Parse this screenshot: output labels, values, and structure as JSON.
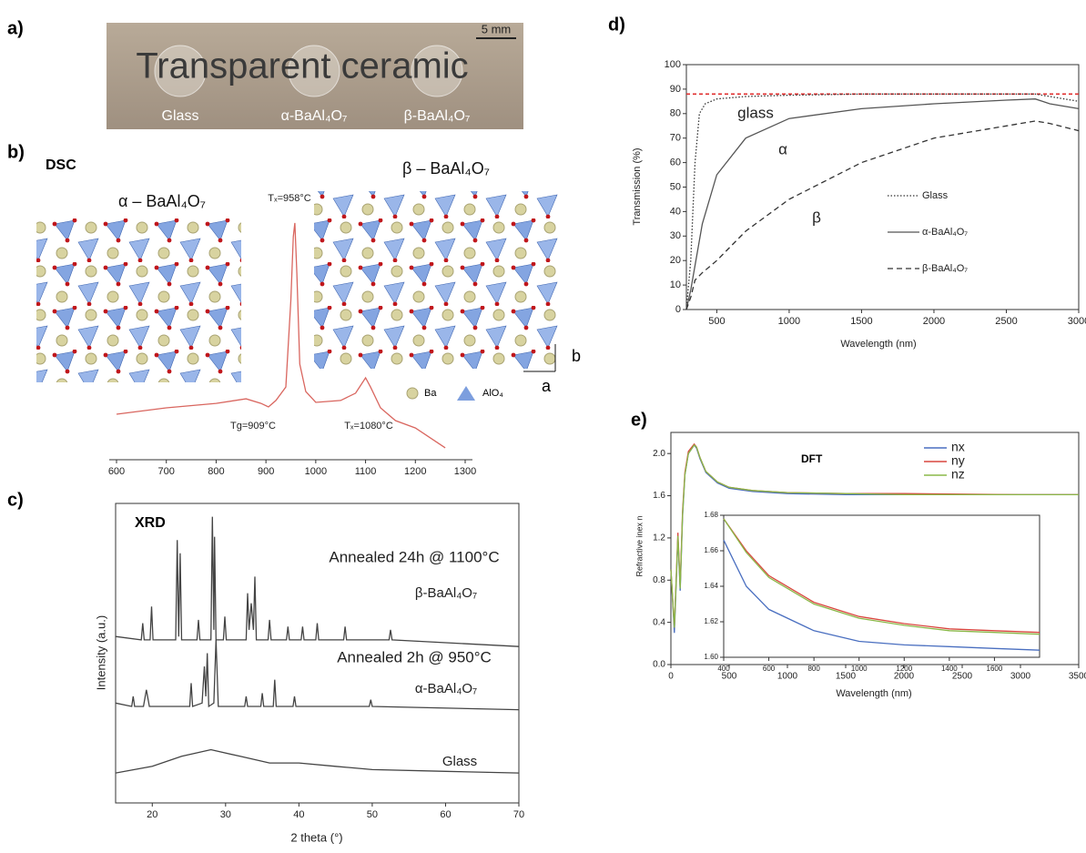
{
  "panel_labels": [
    "a)",
    "b)",
    "c)",
    "d)",
    "e)"
  ],
  "photo": {
    "text": "Transparent ceramic",
    "scale_bar": "5 mm",
    "samples": [
      "Glass",
      "α-BaAl₄O₇",
      "β-BaAl₄O₇"
    ]
  },
  "structures": {
    "alpha_label": "α – BaAl₄O₇",
    "beta_label": "β – BaAl₄O₇",
    "axis_a": "a",
    "axis_b": "b",
    "legend": [
      "Ba",
      "AlO₄"
    ]
  },
  "chart_data": [
    {
      "type": "line",
      "title": "DSC",
      "annotations": [
        "Tₓ=958°C",
        "Tg=909°C",
        "Tₓ=1080°C"
      ],
      "xlim": [
        600,
        1300
      ],
      "xticks": [
        600,
        700,
        800,
        900,
        1000,
        1100,
        1200,
        1300
      ],
      "ylim": [
        0,
        100
      ],
      "series": [
        {
          "color": "#d9665f",
          "style": "solid",
          "x": [
            600,
            700,
            800,
            860,
            890,
            905,
            920,
            940,
            950,
            955,
            958,
            962,
            968,
            980,
            1000,
            1050,
            1080,
            1100,
            1110,
            1130,
            1160,
            1200,
            1260
          ],
          "values": [
            17.3,
            20,
            21.9,
            23.8,
            21.9,
            20.4,
            23.1,
            28.8,
            65.4,
            92.3,
            98.1,
            76.9,
            38.5,
            26.9,
            22.3,
            23.1,
            26.2,
            32.7,
            28.8,
            20,
            14.6,
            11.5,
            3.1
          ]
        }
      ]
    },
    {
      "type": "line",
      "title": "XRD",
      "annotations": [
        "Annealed 24h @ 1100°C",
        "Annealed 2h @ 950°C"
      ],
      "x_label": "2 theta (°)",
      "y_label": "Intensity (a.u.)",
      "xlim": [
        15,
        70
      ],
      "xticks": [
        20,
        30,
        40,
        50,
        60,
        70
      ],
      "ylim": [
        10,
        100
      ],
      "series": [
        {
          "name": "β-BaAl₄O₇",
          "color": "#444",
          "style": "solid",
          "x": [
            15,
            18.5,
            18.7,
            18.9,
            19.7,
            19.9,
            20.1,
            23.2,
            23.4,
            23.6,
            23.8,
            24,
            26.1,
            26.3,
            26.5,
            28,
            28.2,
            28.4,
            28.5,
            28.7,
            29.7,
            29.9,
            30.1,
            32.8,
            33,
            33.2,
            33.5,
            33.8,
            34,
            34.2,
            35.8,
            36,
            36.2,
            38.3,
            38.5,
            38.7,
            40.3,
            40.5,
            40.7,
            42.3,
            42.5,
            42.7,
            46.1,
            46.3,
            46.5,
            52.3,
            52.5,
            52.7,
            70
          ],
          "values": [
            60,
            59,
            64,
            59,
            59,
            69,
            59,
            59,
            89,
            60,
            85,
            59,
            59,
            65,
            59,
            59,
            96,
            62,
            90,
            59,
            59,
            66,
            59,
            59,
            73,
            62,
            70,
            62,
            78,
            59,
            59,
            65,
            59,
            59,
            63,
            59,
            59,
            63,
            59,
            59,
            64,
            59,
            59,
            63,
            59,
            59,
            62,
            59,
            57
          ]
        },
        {
          "name": "α-BaAl₄O₇",
          "color": "#444",
          "style": "solid",
          "x": [
            15,
            17.2,
            17.4,
            17.6,
            18.8,
            19.2,
            19.6,
            25.1,
            25.3,
            25.5,
            26.8,
            27.1,
            27.3,
            27.5,
            27.7,
            28.4,
            28.7,
            29,
            32.6,
            32.8,
            33,
            34.8,
            35,
            35.2,
            36.5,
            36.7,
            36.9,
            39.2,
            39.4,
            39.6,
            49.6,
            49.8,
            50,
            70
          ],
          "values": [
            40,
            39,
            42,
            39,
            39,
            44,
            39,
            39,
            46,
            39,
            40,
            51,
            42,
            55,
            39,
            40,
            59,
            39,
            39,
            42,
            39,
            39,
            43,
            39,
            39,
            47,
            39,
            39,
            42,
            39,
            39,
            41,
            39,
            38
          ]
        },
        {
          "name": "Glass",
          "color": "#444",
          "style": "solid",
          "x": [
            15,
            20,
            24,
            28,
            32,
            36,
            40,
            45,
            50,
            60,
            70
          ],
          "values": [
            19,
            21,
            24,
            26,
            24,
            22,
            22,
            21,
            20,
            19.5,
            19
          ]
        }
      ]
    },
    {
      "type": "line",
      "annotations": [
        "glass",
        "α",
        "β"
      ],
      "x_label": "Wavelength (nm)",
      "y_label": "Transmission (%)",
      "xlim": [
        290,
        3000
      ],
      "xticks": [
        500,
        1000,
        1500,
        2000,
        2500,
        3000
      ],
      "ylim": [
        0,
        100
      ],
      "yticks": [
        0,
        10,
        20,
        30,
        40,
        50,
        60,
        70,
        80,
        90,
        100
      ],
      "reference_lines": [
        {
          "value": 88,
          "color": "#e03030"
        }
      ],
      "series": [
        {
          "name": "Glass",
          "color": "#333",
          "style": "dotted",
          "x": [
            290,
            320,
            350,
            380,
            420,
            500,
            700,
            1000,
            1500,
            2000,
            2500,
            2700,
            2800,
            3000
          ],
          "values": [
            0,
            20,
            60,
            80,
            84,
            86,
            87,
            87.5,
            88,
            88,
            88,
            88,
            87,
            85
          ]
        },
        {
          "name": "α-BaAl₄O₇",
          "color": "#555",
          "style": "solid",
          "x": [
            290,
            320,
            400,
            500,
            700,
            1000,
            1500,
            2000,
            2500,
            2700,
            2800,
            3000
          ],
          "values": [
            0,
            8,
            35,
            55,
            70,
            78,
            82,
            84,
            85.5,
            86,
            84,
            82
          ]
        },
        {
          "name": "β-BaAl₄O₇",
          "color": "#333",
          "style": "dashed",
          "x": [
            290,
            320,
            350,
            400,
            500,
            700,
            1000,
            1500,
            2000,
            2500,
            2700,
            2800,
            3000
          ],
          "values": [
            0,
            5,
            12,
            15,
            20,
            32,
            45,
            60,
            70,
            75,
            77,
            76,
            73
          ]
        }
      ]
    },
    {
      "type": "line",
      "title": "DFT",
      "x_label": "Wavelength (nm)",
      "y_label": "Refractive inex n",
      "xlim": [
        0,
        3500
      ],
      "xticks": [
        0,
        500,
        1000,
        1500,
        2000,
        2500,
        3000,
        3500
      ],
      "ylim": [
        0,
        2.2
      ],
      "yticks": [
        {
          "value": 0,
          "label": "0.0"
        },
        0.4,
        0.8,
        1.2,
        1.6,
        {
          "value": 2,
          "label": "2.0"
        }
      ],
      "x": [
        0,
        30,
        60,
        80,
        100,
        120,
        150,
        200,
        220,
        250,
        300,
        400,
        500,
        700,
        1000,
        1500,
        2000,
        3000,
        3500
      ],
      "series": [
        {
          "name": "nx",
          "color": "#4a6fc0",
          "style": "solid",
          "values": [
            0.9,
            0.3,
            1.2,
            0.7,
            1.4,
            1.8,
            2.0,
            2.08,
            2.05,
            1.95,
            1.82,
            1.72,
            1.67,
            1.64,
            1.62,
            1.61,
            1.61,
            1.61,
            1.61
          ]
        },
        {
          "name": "ny",
          "color": "#d9463e",
          "style": "solid",
          "values": [
            0.9,
            0.35,
            1.25,
            0.75,
            1.45,
            1.82,
            2.02,
            2.09,
            2.06,
            1.96,
            1.83,
            1.73,
            1.68,
            1.65,
            1.63,
            1.62,
            1.62,
            1.61,
            1.61
          ]
        },
        {
          "name": "nz",
          "color": "#8ab848",
          "style": "solid",
          "values": [
            0.9,
            0.35,
            1.22,
            0.72,
            1.42,
            1.8,
            2.0,
            2.08,
            2.06,
            1.96,
            1.83,
            1.73,
            1.68,
            1.65,
            1.63,
            1.62,
            1.61,
            1.61,
            1.61
          ]
        }
      ]
    },
    {
      "type": "line",
      "xlim": [
        400,
        1800
      ],
      "xticks": [
        400,
        600,
        800,
        1000,
        1200,
        1400,
        1600
      ],
      "ylim": [
        1.6,
        1.68
      ],
      "yticks": [
        {
          "value": 1.6,
          "label": "1.60"
        },
        1.62,
        1.64,
        1.66,
        1.68
      ],
      "x": [
        400,
        500,
        600,
        800,
        1000,
        1200,
        1400,
        1600,
        1800
      ],
      "series": [
        {
          "color": "#4a6fc0",
          "style": "solid",
          "values": [
            1.666,
            1.64,
            1.627,
            1.615,
            1.609,
            1.607,
            1.606,
            1.605,
            1.604
          ]
        },
        {
          "color": "#d9463e",
          "style": "solid",
          "values": [
            1.678,
            1.66,
            1.646,
            1.631,
            1.623,
            1.619,
            1.616,
            1.615,
            1.614
          ]
        },
        {
          "color": "#8ab848",
          "style": "solid",
          "values": [
            1.678,
            1.659,
            1.645,
            1.63,
            1.622,
            1.618,
            1.615,
            1.614,
            1.613
          ]
        }
      ]
    }
  ]
}
